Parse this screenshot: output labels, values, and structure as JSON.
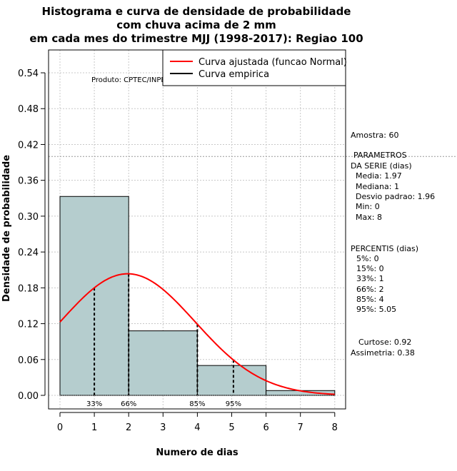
{
  "chart_data": {
    "type": "bar",
    "title_lines": [
      "Histograma e curva de densidade de probabilidade",
      "com chuva acima de 2 mm",
      "em cada mes do trimestre MJJ (1998-2017): Regiao 100"
    ],
    "xlabel": "Numero de dias",
    "ylabel": "Densidade de probabilidade",
    "xlim": [
      0,
      8
    ],
    "ylim": [
      0,
      0.54
    ],
    "x_ticks": [
      "0",
      "1",
      "2",
      "3",
      "4",
      "5",
      "6",
      "7",
      "8"
    ],
    "y_ticks": [
      "0.00",
      "0.06",
      "0.12",
      "0.18",
      "0.24",
      "0.30",
      "0.36",
      "0.42",
      "0.48",
      "0.54"
    ],
    "grid": true,
    "bins": [
      {
        "from": 0,
        "to": 2,
        "density": 0.333
      },
      {
        "from": 2,
        "to": 4,
        "density": 0.108
      },
      {
        "from": 4,
        "to": 6,
        "density": 0.05
      },
      {
        "from": 6,
        "to": 8,
        "density": 0.008
      }
    ],
    "normal_curve": {
      "name": "Curva ajustada (funcao Normal)",
      "mean": 1.97,
      "sd": 1.96,
      "color": "#ff0000"
    },
    "empirical_curve": {
      "name": "Curva empirica",
      "color": "#000000"
    },
    "reference_line_y": 0.4,
    "percentile_lines": [
      {
        "label": "33%",
        "x": 1
      },
      {
        "label": "66%",
        "x": 2
      },
      {
        "label": "85%",
        "x": 4
      },
      {
        "label": "95%",
        "x": 5.05
      }
    ],
    "legend_position": "top-right",
    "credit": "Produto: CPTEC/INPE",
    "bar_color": "#b5cdce"
  },
  "stats_panel": {
    "amostra": "Amostra: 60",
    "params_title_1": "PARAMETROS",
    "params_title_2": "DA SERIE (dias)",
    "media": "Media: 1.97",
    "mediana": "Mediana: 1",
    "desvio": "Desvio padrao: 1.96",
    "min": "Min: 0",
    "max": "Max: 8",
    "percentis_title": "PERCENTIS (dias)",
    "p5": "5%: 0",
    "p15": "15%: 0",
    "p33": "33%: 1",
    "p66": "66%: 2",
    "p85": "85%: 4",
    "p95": "95%: 5.05",
    "curtose": "Curtose: 0.92",
    "assimetria": "Assimetria: 0.38"
  }
}
